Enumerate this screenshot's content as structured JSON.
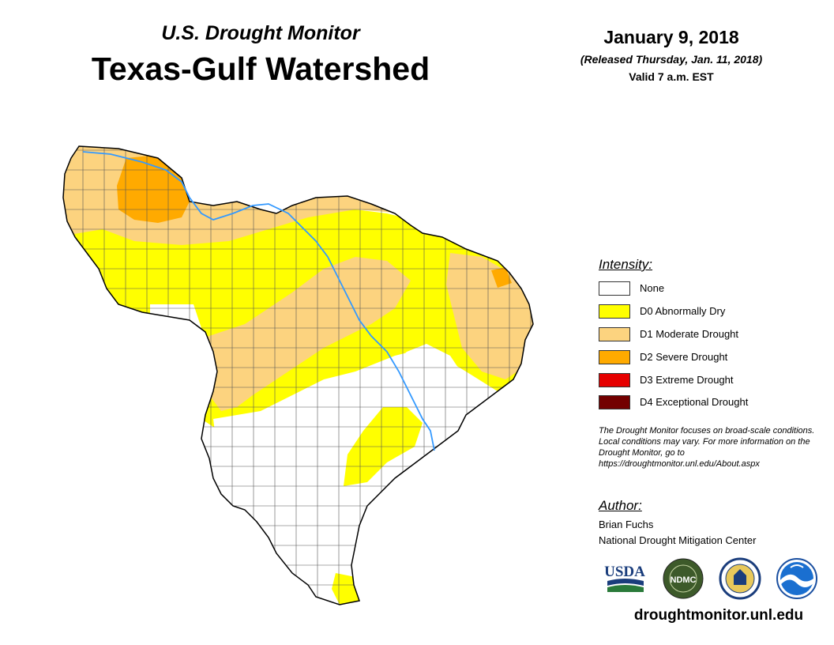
{
  "header": {
    "subtitle": "U.S. Drought Monitor",
    "title": "Texas-Gulf Watershed",
    "date": "January 9, 2018",
    "released": "(Released Thursday, Jan. 11, 2018)",
    "valid": "Valid 7 a.m. EST"
  },
  "legend": {
    "heading": "Intensity:",
    "items": [
      {
        "label": "None",
        "color": "#ffffff"
      },
      {
        "label": "D0 Abnormally Dry",
        "color": "#ffff00"
      },
      {
        "label": "D1 Moderate Drought",
        "color": "#fcd37f"
      },
      {
        "label": "D2 Severe Drought",
        "color": "#ffaa00"
      },
      {
        "label": "D3 Extreme Drought",
        "color": "#e60000"
      },
      {
        "label": "D4 Exceptional Drought",
        "color": "#730000"
      }
    ]
  },
  "disclaimer": "The Drought Monitor focuses on broad-scale conditions. Local conditions may vary. For more information on the Drought Monitor, go to https://droughtmonitor.unl.edu/About.aspx",
  "author": {
    "heading": "Author:",
    "name": "Brian Fuchs",
    "org": "National Drought Mitigation Center"
  },
  "logos": {
    "usda": "USDA",
    "ndmc": "NDMC",
    "icons": [
      "usda-logo",
      "ndmc-logo",
      "doc-seal-logo",
      "noaa-logo"
    ]
  },
  "url": "droughtmonitor.unl.edu",
  "map_colors": {
    "none": "#ffffff",
    "d0": "#ffff00",
    "d1": "#fcd37f",
    "d2": "#ffaa00",
    "river": "#3399ff",
    "county_lines": "#555555"
  }
}
